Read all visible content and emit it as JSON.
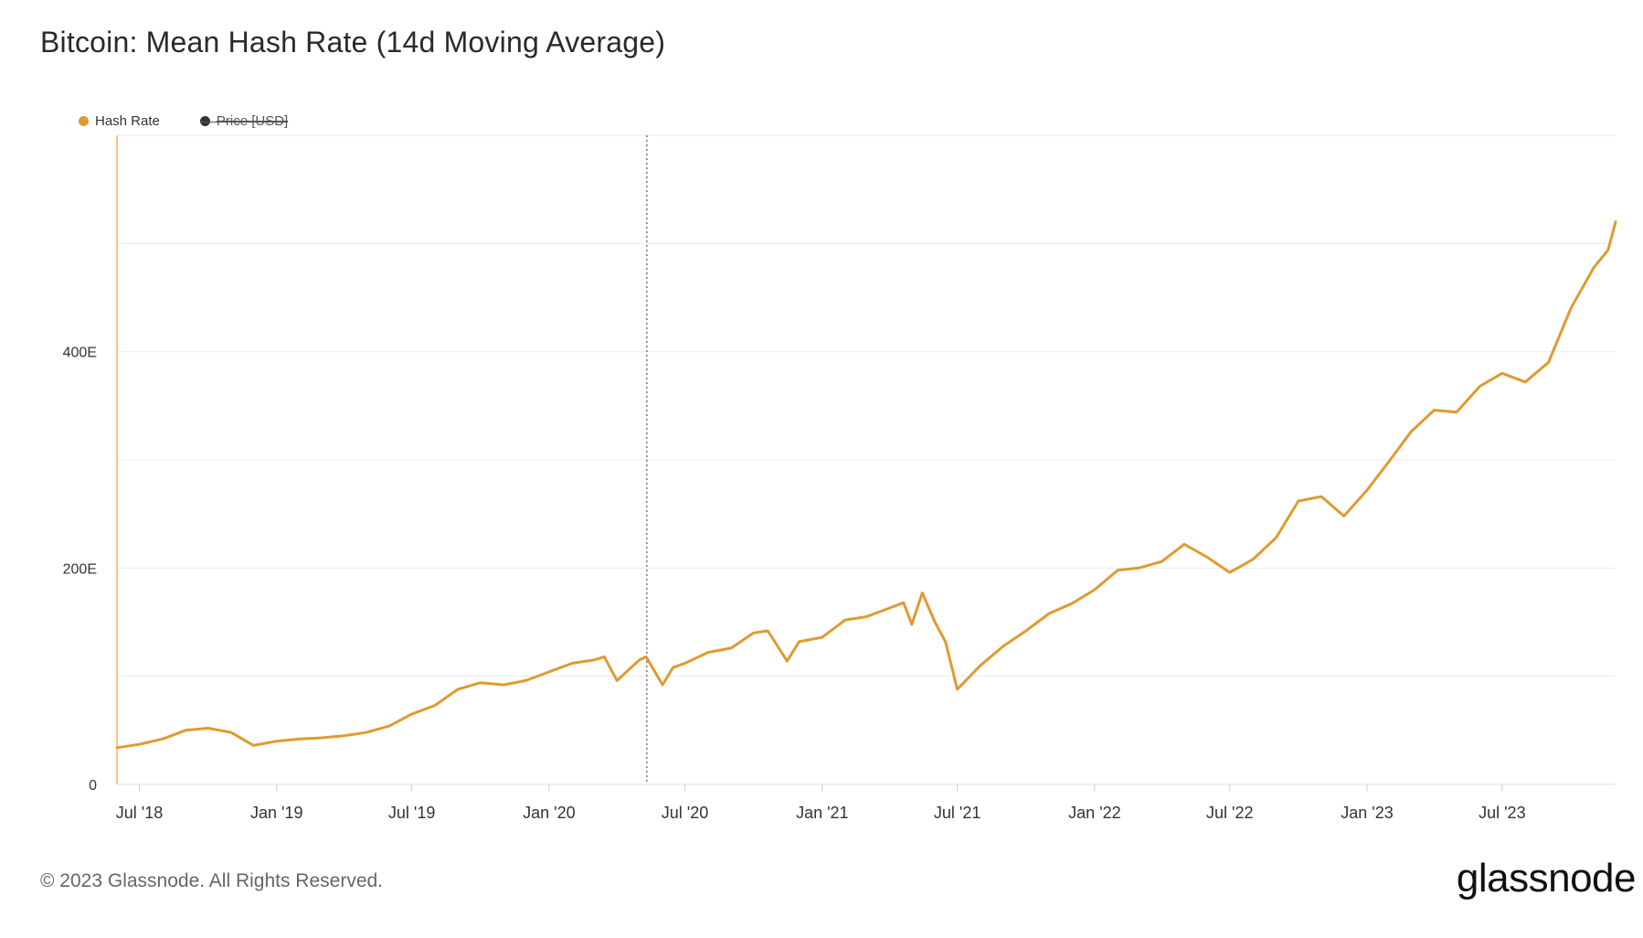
{
  "title": "Bitcoin: Mean Hash Rate (14d Moving Average)",
  "legend": [
    {
      "name": "Hash Rate",
      "color": "#e09a30",
      "active": true
    },
    {
      "name": "Price [USD]",
      "color": "#333333",
      "active": false
    }
  ],
  "footer": "© 2023 Glassnode. All Rights Reserved.",
  "brand": "glassnode",
  "chart_data": {
    "type": "line",
    "title": "Bitcoin: Mean Hash Rate (14d Moving Average)",
    "xlabel": "",
    "ylabel": "",
    "x_range": [
      "2018-06-01",
      "2023-11-30"
    ],
    "ylim": [
      0,
      600
    ],
    "y_ticks": [
      {
        "value": 0,
        "label": "0"
      },
      {
        "value": 200,
        "label": "200E"
      },
      {
        "value": 400,
        "label": "400E"
      }
    ],
    "y_gridlines": [
      100,
      200,
      300,
      400,
      500,
      600
    ],
    "x_ticks": [
      {
        "date": "2018-07-01",
        "label": "Jul '18"
      },
      {
        "date": "2019-01-01",
        "label": "Jan '19"
      },
      {
        "date": "2019-07-01",
        "label": "Jul '19"
      },
      {
        "date": "2020-01-01",
        "label": "Jan '20"
      },
      {
        "date": "2020-07-01",
        "label": "Jul '20"
      },
      {
        "date": "2021-01-01",
        "label": "Jan '21"
      },
      {
        "date": "2021-07-01",
        "label": "Jul '21"
      },
      {
        "date": "2022-01-01",
        "label": "Jan '22"
      },
      {
        "date": "2022-07-01",
        "label": "Jul '22"
      },
      {
        "date": "2023-01-01",
        "label": "Jan '23"
      },
      {
        "date": "2023-07-01",
        "label": "Jul '23"
      }
    ],
    "vertical_marker_date": "2020-05-11",
    "grid": true,
    "legend_position": "top-left",
    "series": [
      {
        "name": "Hash Rate",
        "color": "#e09a30",
        "points": [
          [
            "2018-06-01",
            34
          ],
          [
            "2018-07-01",
            37
          ],
          [
            "2018-08-01",
            42
          ],
          [
            "2018-09-01",
            50
          ],
          [
            "2018-10-01",
            52
          ],
          [
            "2018-11-01",
            48
          ],
          [
            "2018-12-01",
            36
          ],
          [
            "2019-01-01",
            40
          ],
          [
            "2019-02-01",
            42
          ],
          [
            "2019-03-01",
            43
          ],
          [
            "2019-04-01",
            45
          ],
          [
            "2019-05-01",
            48
          ],
          [
            "2019-06-01",
            54
          ],
          [
            "2019-07-01",
            65
          ],
          [
            "2019-08-01",
            73
          ],
          [
            "2019-09-01",
            88
          ],
          [
            "2019-10-01",
            94
          ],
          [
            "2019-11-01",
            92
          ],
          [
            "2019-12-01",
            96
          ],
          [
            "2020-01-01",
            104
          ],
          [
            "2020-02-01",
            112
          ],
          [
            "2020-03-01",
            115
          ],
          [
            "2020-03-15",
            118
          ],
          [
            "2020-04-01",
            96
          ],
          [
            "2020-05-01",
            115
          ],
          [
            "2020-05-10",
            118
          ],
          [
            "2020-06-01",
            92
          ],
          [
            "2020-06-15",
            108
          ],
          [
            "2020-07-01",
            112
          ],
          [
            "2020-08-01",
            122
          ],
          [
            "2020-09-01",
            126
          ],
          [
            "2020-10-01",
            140
          ],
          [
            "2020-10-20",
            142
          ],
          [
            "2020-11-15",
            114
          ],
          [
            "2020-12-01",
            132
          ],
          [
            "2021-01-01",
            136
          ],
          [
            "2021-02-01",
            152
          ],
          [
            "2021-03-01",
            155
          ],
          [
            "2021-04-01",
            163
          ],
          [
            "2021-04-20",
            168
          ],
          [
            "2021-05-01",
            148
          ],
          [
            "2021-05-15",
            177
          ],
          [
            "2021-06-01",
            150
          ],
          [
            "2021-06-15",
            132
          ],
          [
            "2021-07-01",
            88
          ],
          [
            "2021-08-01",
            110
          ],
          [
            "2021-09-01",
            128
          ],
          [
            "2021-10-01",
            142
          ],
          [
            "2021-11-01",
            158
          ],
          [
            "2021-12-01",
            167
          ],
          [
            "2022-01-01",
            180
          ],
          [
            "2022-02-01",
            198
          ],
          [
            "2022-03-01",
            200
          ],
          [
            "2022-04-01",
            206
          ],
          [
            "2022-05-01",
            222
          ],
          [
            "2022-06-01",
            210
          ],
          [
            "2022-07-01",
            196
          ],
          [
            "2022-08-01",
            208
          ],
          [
            "2022-09-01",
            228
          ],
          [
            "2022-10-01",
            262
          ],
          [
            "2022-11-01",
            266
          ],
          [
            "2022-12-01",
            248
          ],
          [
            "2023-01-01",
            272
          ],
          [
            "2023-02-01",
            300
          ],
          [
            "2023-03-01",
            326
          ],
          [
            "2023-04-01",
            346
          ],
          [
            "2023-05-01",
            344
          ],
          [
            "2023-06-01",
            368
          ],
          [
            "2023-07-01",
            380
          ],
          [
            "2023-08-01",
            372
          ],
          [
            "2023-09-01",
            390
          ],
          [
            "2023-10-01",
            440
          ],
          [
            "2023-11-01",
            478
          ],
          [
            "2023-11-20",
            494
          ],
          [
            "2023-11-30",
            520
          ]
        ]
      }
    ]
  }
}
